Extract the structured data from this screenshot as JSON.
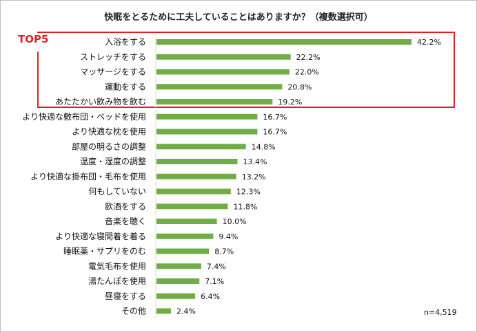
{
  "chart_data": {
    "type": "bar",
    "orientation": "horizontal",
    "title": "快眠をとるために工夫していることはありますか？（複数選択可）",
    "highlight_label": "TOP5",
    "highlight_count": 5,
    "sample_note": "n=4,519",
    "value_suffix": "%",
    "bar_color": "#70ad47",
    "highlight_color": "#e02020",
    "xlim": [
      0,
      50
    ],
    "categories": [
      "入浴をする",
      "ストレッチをする",
      "マッサージをする",
      "運動をする",
      "あたたかい飲み物を飲む",
      "より快適な敷布団・ベッドを使用",
      "より快適な枕を使用",
      "部屋の明るさの調整",
      "温度・湿度の調整",
      "より快適な掛布団・毛布を使用",
      "何もしていない",
      "飲酒をする",
      "音楽を聴く",
      "より快適な寝間着を着る",
      "睡眠薬・サプリをのむ",
      "電気毛布を使用",
      "湯たんぽを使用",
      "昼寝をする",
      "その他"
    ],
    "values": [
      42.2,
      22.2,
      22.0,
      20.8,
      19.2,
      16.7,
      16.7,
      14.8,
      13.4,
      13.2,
      12.3,
      11.8,
      10.0,
      9.4,
      8.7,
      7.4,
      7.1,
      6.4,
      2.4
    ]
  }
}
